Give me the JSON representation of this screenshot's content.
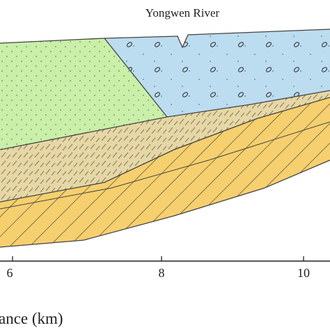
{
  "annotation": "Yongwen River",
  "x_axis": {
    "label": "ance (km)",
    "ticks": [
      "6",
      "8",
      "10"
    ]
  }
}
